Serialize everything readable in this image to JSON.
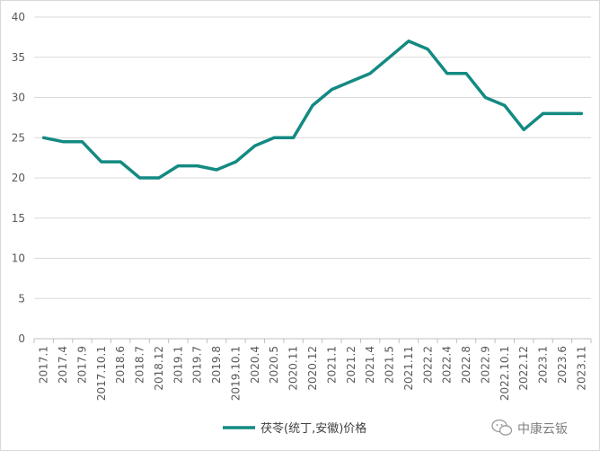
{
  "chart_data": {
    "type": "line",
    "title": "",
    "xlabel": "",
    "ylabel": "",
    "ylim": [
      0,
      40
    ],
    "yticks": [
      0,
      5,
      10,
      15,
      20,
      25,
      30,
      35,
      40
    ],
    "grid": true,
    "legend_position": "bottom",
    "categories": [
      "2017.1",
      "2017.4",
      "2017.9",
      "2017.10.1",
      "2018.6",
      "2018.7",
      "2018.12",
      "2019.1",
      "2019.7",
      "2019.8",
      "2019.10.1",
      "2020.4",
      "2020.5",
      "2020.11",
      "2020.12",
      "2021.1",
      "2021.2",
      "2021.4",
      "2021.5",
      "2021.11",
      "2022.2",
      "2022.4",
      "2022.8",
      "2022.9",
      "2022.10.1",
      "2022.12",
      "2023.1",
      "2023.6",
      "2023.11"
    ],
    "series": [
      {
        "name": "茯苓(统丁,安徽)价格",
        "color": "#138a82",
        "values": [
          25,
          24.5,
          24.5,
          22,
          22,
          20,
          20,
          21.5,
          21.5,
          21,
          22,
          24,
          25,
          25,
          29,
          31,
          32,
          33,
          35,
          37,
          36,
          33,
          33,
          30,
          29,
          26,
          28,
          28,
          28
        ]
      }
    ]
  },
  "watermark": {
    "icon": "wechat-icon",
    "text": "中康云钣"
  }
}
